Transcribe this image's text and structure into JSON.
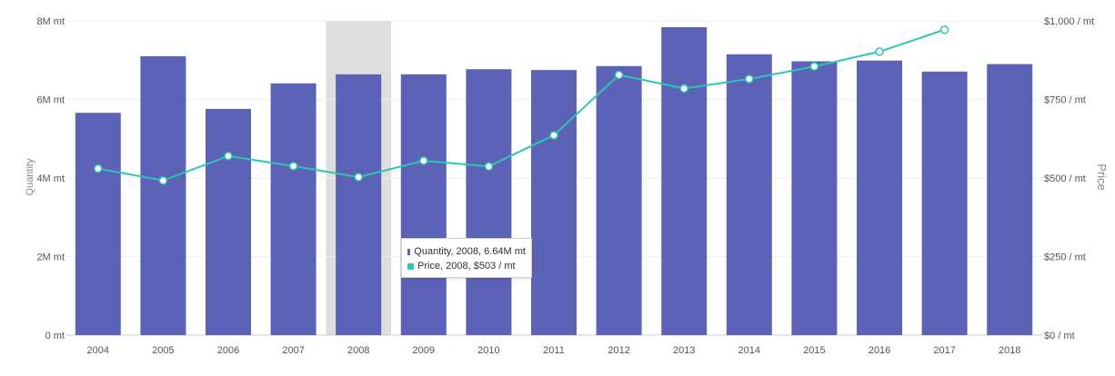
{
  "chart_data": {
    "type": "bar+line",
    "categories": [
      "2004",
      "2005",
      "2006",
      "2007",
      "2008",
      "2009",
      "2010",
      "2011",
      "2012",
      "2013",
      "2014",
      "2015",
      "2016",
      "2017",
      "2018"
    ],
    "series": [
      {
        "name": "Quantity",
        "type": "bar",
        "axis": "left",
        "values": [
          5.66,
          7.1,
          5.76,
          6.41,
          6.64,
          6.64,
          6.77,
          6.75,
          6.85,
          7.84,
          7.15,
          6.97,
          6.99,
          6.71,
          6.9
        ]
      },
      {
        "name": "Price",
        "type": "line",
        "axis": "right",
        "values": [
          530,
          492,
          570,
          538,
          503,
          555,
          537,
          636,
          828,
          785,
          815,
          855,
          902,
          972,
          null
        ]
      }
    ],
    "y_left": {
      "label": "Quantity",
      "ylim": [
        0,
        8
      ],
      "ticks": [
        "0 mt",
        "2M mt",
        "4M mt",
        "6M mt",
        "8M mt"
      ],
      "tick_values": [
        0,
        2,
        4,
        6,
        8
      ]
    },
    "y_right": {
      "label": "Price",
      "ylim": [
        0,
        1000
      ],
      "ticks": [
        "$0 / mt",
        "$250 / mt",
        "$500 / mt",
        "$750 / mt",
        "$1,000 / mt"
      ],
      "tick_values": [
        0,
        250,
        500,
        750,
        1000
      ]
    },
    "highlighted_category": "2008",
    "grid": true,
    "colors": {
      "bar": "#5c62b5",
      "line": "#2ec4b6",
      "highlight": "#dedede",
      "grid": "#eeeeee"
    },
    "tooltip": {
      "lines": [
        {
          "text": "Quantity, 2008, 6.64M mt",
          "color": "#5c62b5"
        },
        {
          "text": "Price, 2008, $503 / mt",
          "color": "#2ec4b6"
        }
      ]
    }
  }
}
